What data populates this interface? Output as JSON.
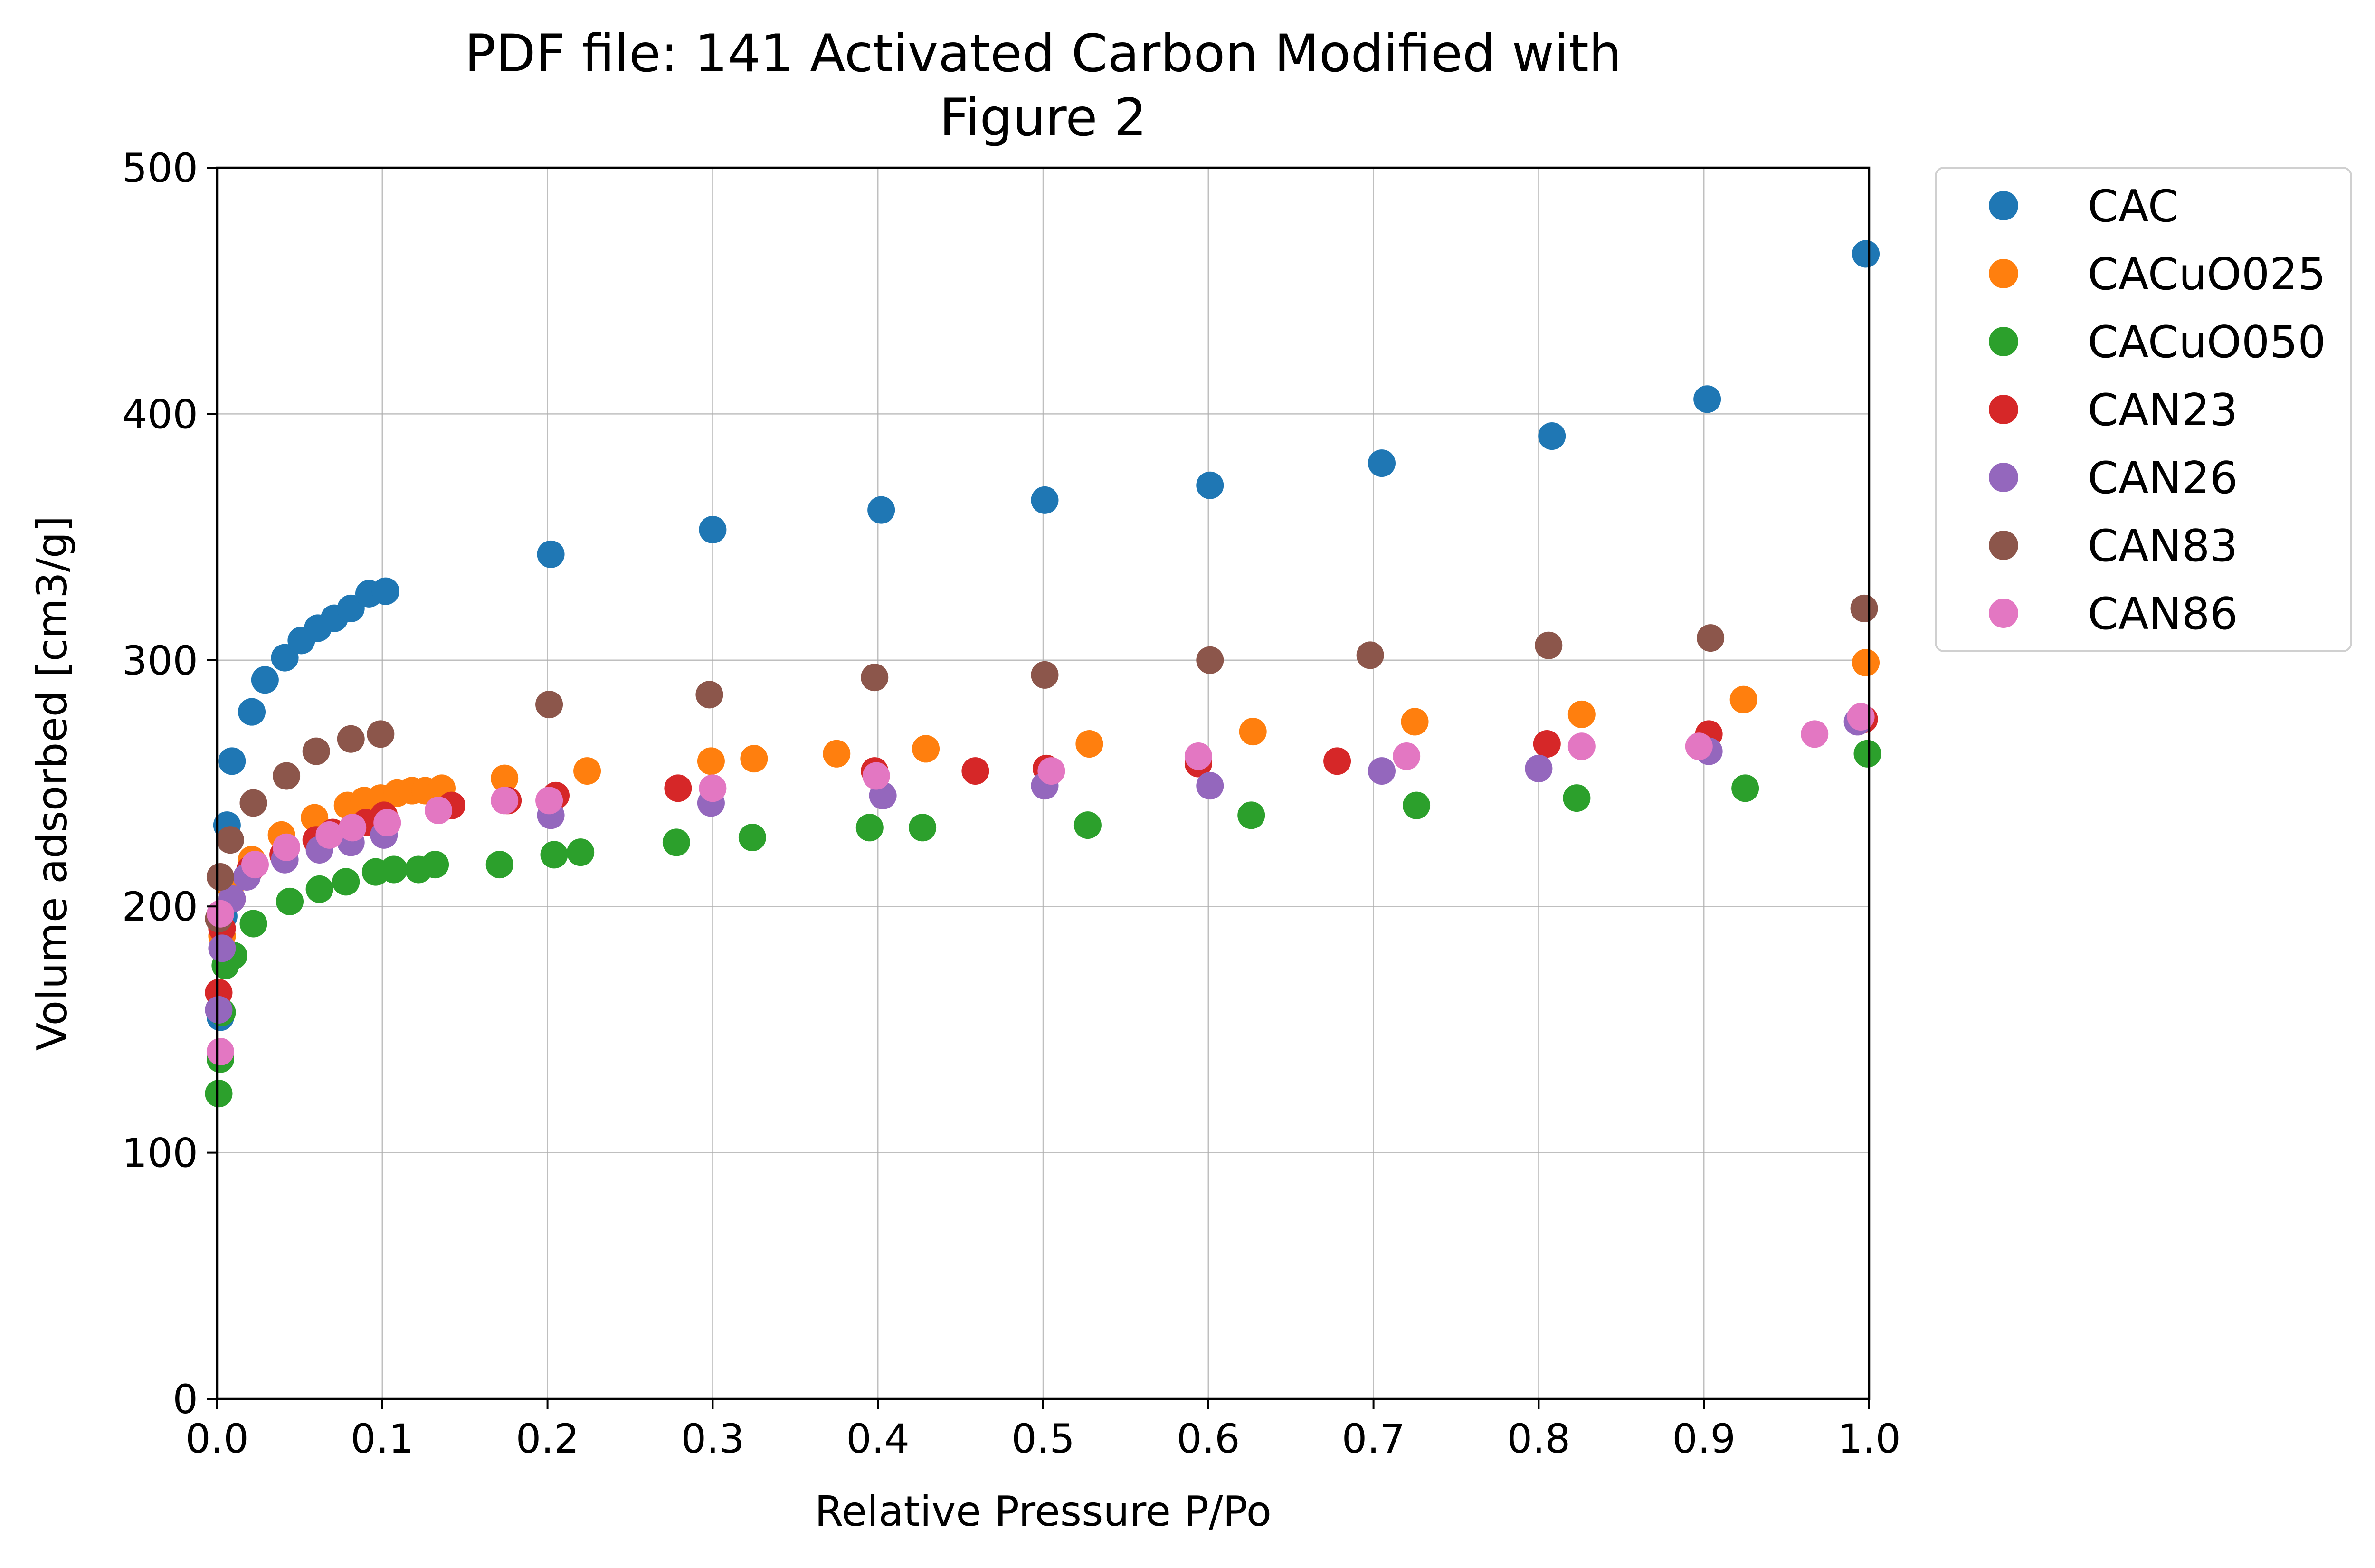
{
  "chart_data": {
    "type": "scatter",
    "title_lines": [
      "PDF file: 141 Activated Carbon Modified with",
      "Figure 2"
    ],
    "xlabel": "Relative Pressure P/Po",
    "ylabel": "Volume adsorbed [cm3/g]",
    "xlim": [
      0.0,
      1.0
    ],
    "ylim": [
      0,
      500
    ],
    "x_ticks": [
      "0.0",
      "0.1",
      "0.2",
      "0.3",
      "0.4",
      "0.5",
      "0.6",
      "0.7",
      "0.8",
      "0.9",
      "1.0"
    ],
    "y_ticks": [
      "0",
      "100",
      "200",
      "300",
      "400",
      "500"
    ],
    "grid": true,
    "legend_position": "outside-top-right",
    "series": [
      {
        "name": "CAC",
        "color": "#1f77b4",
        "points": [
          [
            0.002,
            155
          ],
          [
            0.004,
            196
          ],
          [
            0.006,
            233
          ],
          [
            0.009,
            259
          ],
          [
            0.021,
            279
          ],
          [
            0.029,
            292
          ],
          [
            0.041,
            301
          ],
          [
            0.051,
            308
          ],
          [
            0.061,
            313
          ],
          [
            0.071,
            317
          ],
          [
            0.081,
            321
          ],
          [
            0.092,
            327
          ],
          [
            0.102,
            328
          ],
          [
            0.202,
            343
          ],
          [
            0.3,
            353
          ],
          [
            0.402,
            361
          ],
          [
            0.501,
            365
          ],
          [
            0.601,
            371
          ],
          [
            0.705,
            380
          ],
          [
            0.808,
            391
          ],
          [
            0.902,
            406
          ],
          [
            0.998,
            465
          ]
        ]
      },
      {
        "name": "CACuO025",
        "color": "#ff7f0e",
        "points": [
          [
            0.003,
            188
          ],
          [
            0.008,
            208
          ],
          [
            0.021,
            219
          ],
          [
            0.039,
            229
          ],
          [
            0.059,
            236
          ],
          [
            0.079,
            241
          ],
          [
            0.089,
            243
          ],
          [
            0.099,
            244
          ],
          [
            0.109,
            246
          ],
          [
            0.118,
            247
          ],
          [
            0.126,
            247
          ],
          [
            0.136,
            248
          ],
          [
            0.174,
            252
          ],
          [
            0.224,
            255
          ],
          [
            0.299,
            259
          ],
          [
            0.325,
            260
          ],
          [
            0.375,
            262
          ],
          [
            0.429,
            264
          ],
          [
            0.528,
            266
          ],
          [
            0.627,
            271
          ],
          [
            0.725,
            275
          ],
          [
            0.826,
            278
          ],
          [
            0.924,
            284
          ],
          [
            0.998,
            299
          ]
        ]
      },
      {
        "name": "CACuO050",
        "color": "#2ca02c",
        "points": [
          [
            0.001,
            124
          ],
          [
            0.002,
            138
          ],
          [
            0.003,
            157
          ],
          [
            0.005,
            176
          ],
          [
            0.01,
            180
          ],
          [
            0.022,
            193
          ],
          [
            0.044,
            202
          ],
          [
            0.062,
            207
          ],
          [
            0.078,
            210
          ],
          [
            0.096,
            214
          ],
          [
            0.107,
            215
          ],
          [
            0.122,
            215
          ],
          [
            0.132,
            217
          ],
          [
            0.171,
            217
          ],
          [
            0.204,
            221
          ],
          [
            0.22,
            222
          ],
          [
            0.278,
            226
          ],
          [
            0.324,
            228
          ],
          [
            0.395,
            232
          ],
          [
            0.427,
            232
          ],
          [
            0.527,
            233
          ],
          [
            0.626,
            237
          ],
          [
            0.726,
            241
          ],
          [
            0.823,
            244
          ],
          [
            0.925,
            248
          ],
          [
            0.999,
            262
          ]
        ]
      },
      {
        "name": "CAN23",
        "color": "#d62728",
        "points": [
          [
            0.001,
            165
          ],
          [
            0.003,
            191
          ],
          [
            0.009,
            203
          ],
          [
            0.02,
            215
          ],
          [
            0.04,
            221
          ],
          [
            0.06,
            227
          ],
          [
            0.07,
            230
          ],
          [
            0.09,
            234
          ],
          [
            0.101,
            237
          ],
          [
            0.142,
            241
          ],
          [
            0.176,
            243
          ],
          [
            0.205,
            245
          ],
          [
            0.279,
            248
          ],
          [
            0.398,
            255
          ],
          [
            0.459,
            255
          ],
          [
            0.502,
            256
          ],
          [
            0.594,
            258
          ],
          [
            0.678,
            259
          ],
          [
            0.805,
            266
          ],
          [
            0.903,
            270
          ],
          [
            0.997,
            276
          ]
        ]
      },
      {
        "name": "CAN26",
        "color": "#9467bd",
        "points": [
          [
            0.001,
            158
          ],
          [
            0.003,
            183
          ],
          [
            0.009,
            203
          ],
          [
            0.018,
            212
          ],
          [
            0.041,
            219
          ],
          [
            0.062,
            223
          ],
          [
            0.081,
            226
          ],
          [
            0.101,
            229
          ],
          [
            0.202,
            237
          ],
          [
            0.299,
            242
          ],
          [
            0.403,
            245
          ],
          [
            0.501,
            249
          ],
          [
            0.601,
            249
          ],
          [
            0.705,
            255
          ],
          [
            0.8,
            256
          ],
          [
            0.903,
            263
          ],
          [
            0.993,
            275
          ]
        ]
      },
      {
        "name": "CAN83",
        "color": "#8c564b",
        "points": [
          [
            0.001,
            195
          ],
          [
            0.002,
            212
          ],
          [
            0.008,
            227
          ],
          [
            0.022,
            242
          ],
          [
            0.042,
            253
          ],
          [
            0.06,
            263
          ],
          [
            0.081,
            268
          ],
          [
            0.099,
            270
          ],
          [
            0.201,
            282
          ],
          [
            0.298,
            286
          ],
          [
            0.398,
            293
          ],
          [
            0.501,
            294
          ],
          [
            0.601,
            300
          ],
          [
            0.698,
            302
          ],
          [
            0.806,
            306
          ],
          [
            0.904,
            309
          ],
          [
            0.997,
            321
          ]
        ]
      },
      {
        "name": "CAN86",
        "color": "#e377c2",
        "points": [
          [
            0.002,
            141
          ],
          [
            0.002,
            197
          ],
          [
            0.023,
            217
          ],
          [
            0.042,
            224
          ],
          [
            0.068,
            229
          ],
          [
            0.082,
            232
          ],
          [
            0.103,
            234
          ],
          [
            0.134,
            239
          ],
          [
            0.174,
            243
          ],
          [
            0.201,
            243
          ],
          [
            0.3,
            248
          ],
          [
            0.399,
            253
          ],
          [
            0.505,
            255
          ],
          [
            0.594,
            261
          ],
          [
            0.72,
            261
          ],
          [
            0.826,
            265
          ],
          [
            0.897,
            265
          ],
          [
            0.967,
            270
          ],
          [
            0.995,
            277
          ]
        ]
      }
    ]
  }
}
